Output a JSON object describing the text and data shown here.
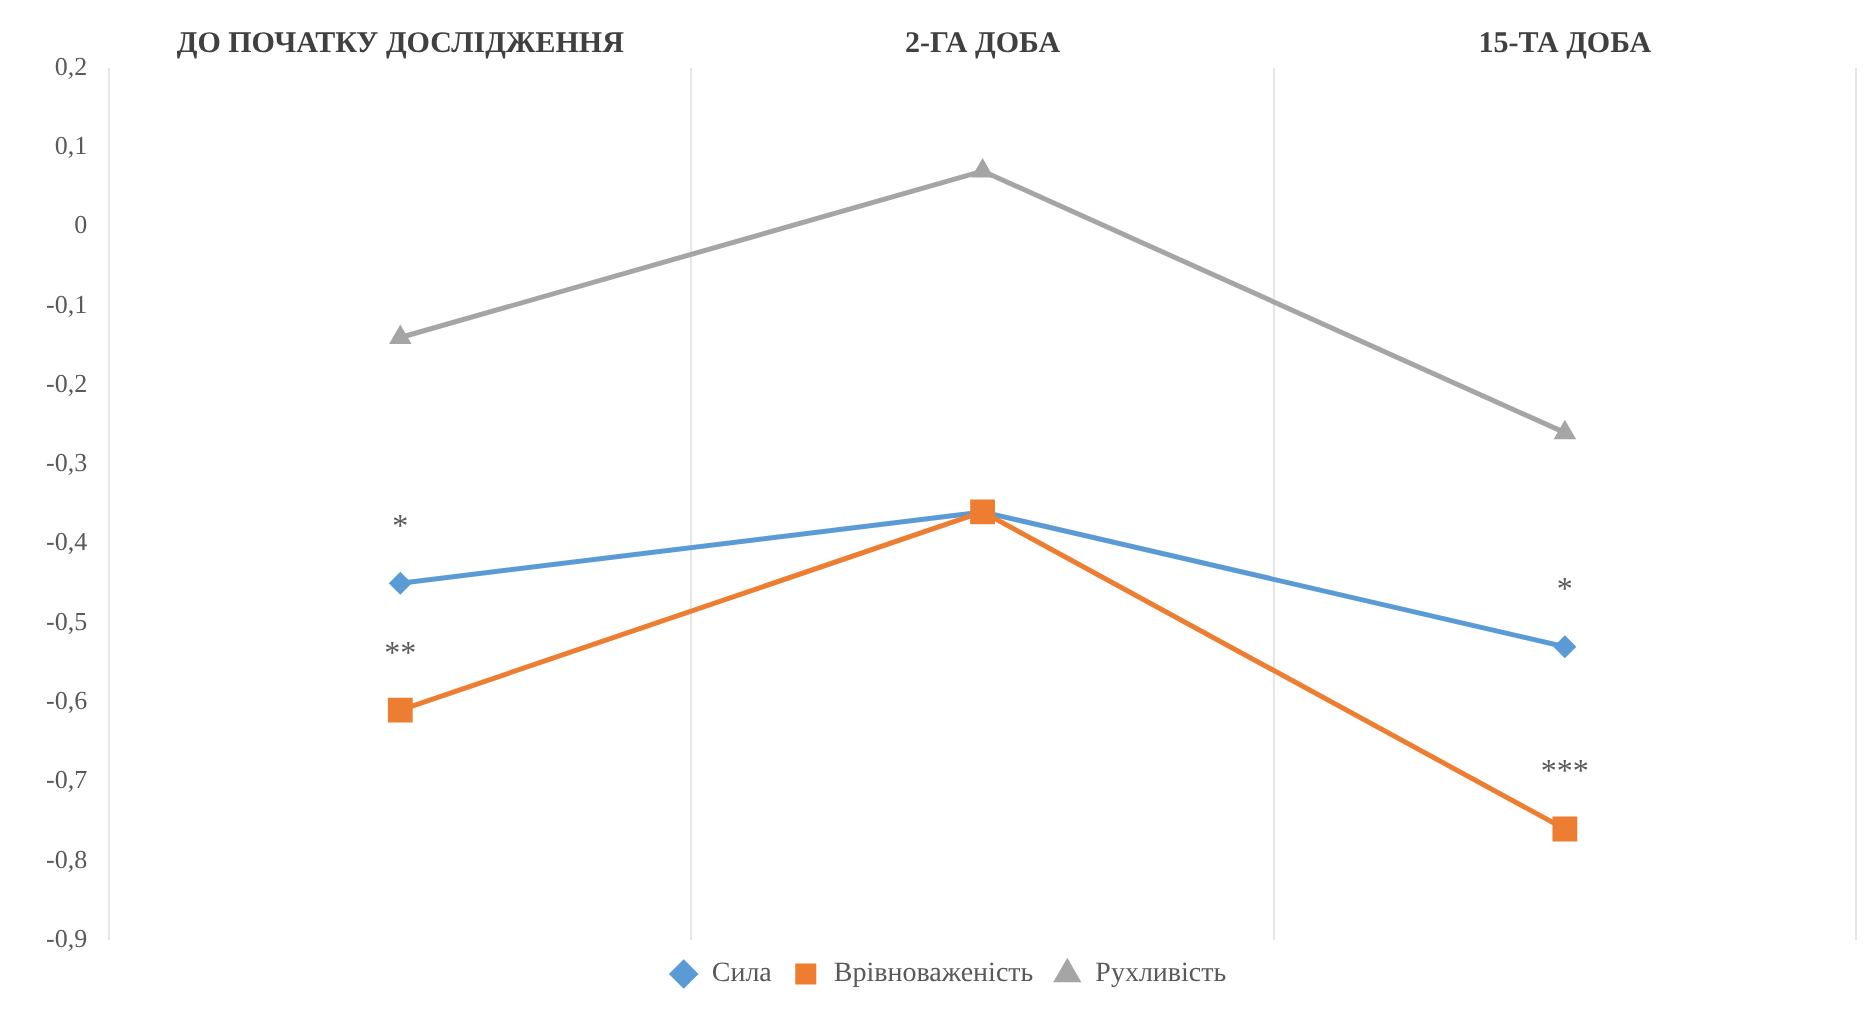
{
  "chart_data": {
    "type": "line",
    "categories": [
      "ДО ПОЧАТКУ ДОСЛІДЖЕННЯ",
      "2-ГА ДОБА",
      "15-ТА ДОБА"
    ],
    "series": [
      {
        "name": "Сила",
        "color": "#5b9bd5",
        "marker": "diamond",
        "values": [
          -0.45,
          -0.36,
          -0.53
        ]
      },
      {
        "name": "Врівноваженість",
        "color": "#ed7d31",
        "marker": "square",
        "values": [
          -0.61,
          -0.36,
          -0.76
        ]
      },
      {
        "name": "Рухливість",
        "color": "#a5a5a5",
        "marker": "triangle",
        "values": [
          -0.14,
          0.07,
          -0.26
        ]
      }
    ],
    "ylim": [
      -0.9,
      0.2
    ],
    "yticks": [
      {
        "value": 0.2,
        "label": "0,2"
      },
      {
        "value": 0.1,
        "label": "0,1"
      },
      0,
      {
        "value": -0.1,
        "label": "-0,1"
      },
      {
        "value": -0.2,
        "label": "-0,2"
      },
      {
        "value": -0.3,
        "label": "-0,3"
      },
      {
        "value": -0.4,
        "label": "-0,4"
      },
      {
        "value": -0.5,
        "label": "-0,5"
      },
      {
        "value": -0.6,
        "label": "-0,6"
      },
      {
        "value": -0.7,
        "label": "-0,7"
      },
      {
        "value": -0.8,
        "label": "-0,8"
      },
      {
        "value": -0.9,
        "label": "-0,9"
      }
    ],
    "annotations": [
      {
        "text": "*",
        "x": "ДО ПОЧАТКУ ДОСЛІДЖЕННЯ",
        "y": -0.45
      },
      {
        "text": "**",
        "x": "ДО ПОЧАТКУ ДОСЛІДЖЕННЯ",
        "y": -0.61
      },
      {
        "text": "*",
        "x": "15-ТА ДОБА",
        "y": -0.53
      },
      {
        "text": "***",
        "x": "15-ТА ДОБА",
        "y": -0.76
      }
    ],
    "grid": "x",
    "legend": "bottom",
    "line_style": "solid"
  }
}
